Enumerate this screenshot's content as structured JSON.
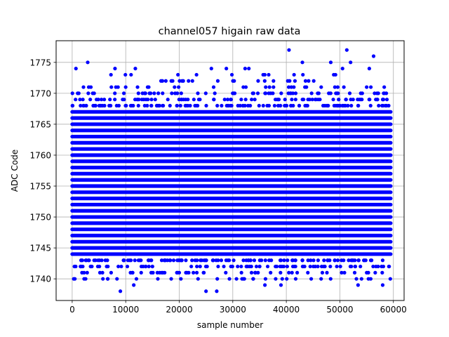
{
  "chart_data": {
    "type": "scatter",
    "title": "channel057 higain raw data",
    "xlabel": "sample number",
    "ylabel": "ADC Code",
    "xlim": [
      -3000,
      62000
    ],
    "ylim": [
      1736.5,
      1778.5
    ],
    "xticks": [
      0,
      10000,
      20000,
      30000,
      40000,
      50000,
      60000
    ],
    "yticks": [
      1740,
      1745,
      1750,
      1755,
      1760,
      1765,
      1770,
      1775
    ],
    "grid": true,
    "marker_color": "#0000ff",
    "series": [
      {
        "sample_range": [
          0,
          59500
        ],
        "dense_band": [
          1741,
          1770
        ],
        "outliers": [
          {
            "x": 500,
            "y": 1740
          },
          {
            "x": 700,
            "y": 1774
          },
          {
            "x": 2900,
            "y": 1775
          },
          {
            "x": 2800,
            "y": 1741
          },
          {
            "x": 8000,
            "y": 1774
          },
          {
            "x": 9000,
            "y": 1738
          },
          {
            "x": 11000,
            "y": 1773
          },
          {
            "x": 11300,
            "y": 1741
          },
          {
            "x": 11500,
            "y": 1739
          },
          {
            "x": 11800,
            "y": 1774
          },
          {
            "x": 12000,
            "y": 1740
          },
          {
            "x": 16000,
            "y": 1740
          },
          {
            "x": 18500,
            "y": 1740
          },
          {
            "x": 25000,
            "y": 1738
          },
          {
            "x": 26000,
            "y": 1774
          },
          {
            "x": 27000,
            "y": 1738
          },
          {
            "x": 28800,
            "y": 1774
          },
          {
            "x": 32000,
            "y": 1740
          },
          {
            "x": 32300,
            "y": 1774
          },
          {
            "x": 33000,
            "y": 1774
          },
          {
            "x": 36000,
            "y": 1739
          },
          {
            "x": 39000,
            "y": 1739
          },
          {
            "x": 40500,
            "y": 1777
          },
          {
            "x": 43000,
            "y": 1775
          },
          {
            "x": 46500,
            "y": 1740
          },
          {
            "x": 48300,
            "y": 1775
          },
          {
            "x": 50500,
            "y": 1774
          },
          {
            "x": 51300,
            "y": 1777
          },
          {
            "x": 52000,
            "y": 1775
          },
          {
            "x": 53400,
            "y": 1739
          },
          {
            "x": 55500,
            "y": 1774
          },
          {
            "x": 56300,
            "y": 1776
          },
          {
            "x": 58000,
            "y": 1739
          }
        ]
      }
    ]
  }
}
